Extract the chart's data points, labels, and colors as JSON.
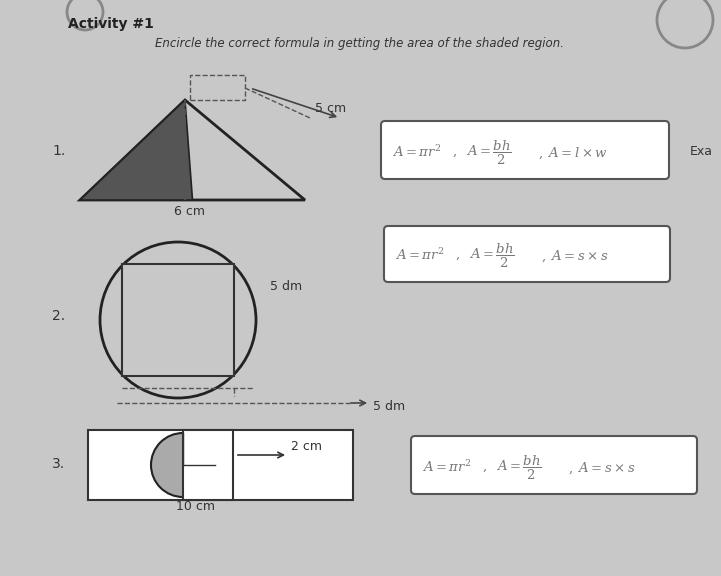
{
  "bg_color": "#c8c8c8",
  "title": "Activity #1",
  "subtitle": "Encircle the correct formula in getting the area of the shaded region.",
  "item1_label": "1.",
  "item2_label": "2.",
  "item3_label": "3.",
  "dim1a": "5 cm",
  "dim1b": "6 cm",
  "dim2a": "5 dm",
  "dim2b": "5 dm",
  "dim3a": "10 cm",
  "dim3b": "2 cm",
  "exa_label": "Exa",
  "text_color": "#555555",
  "formula_color": "#777777"
}
